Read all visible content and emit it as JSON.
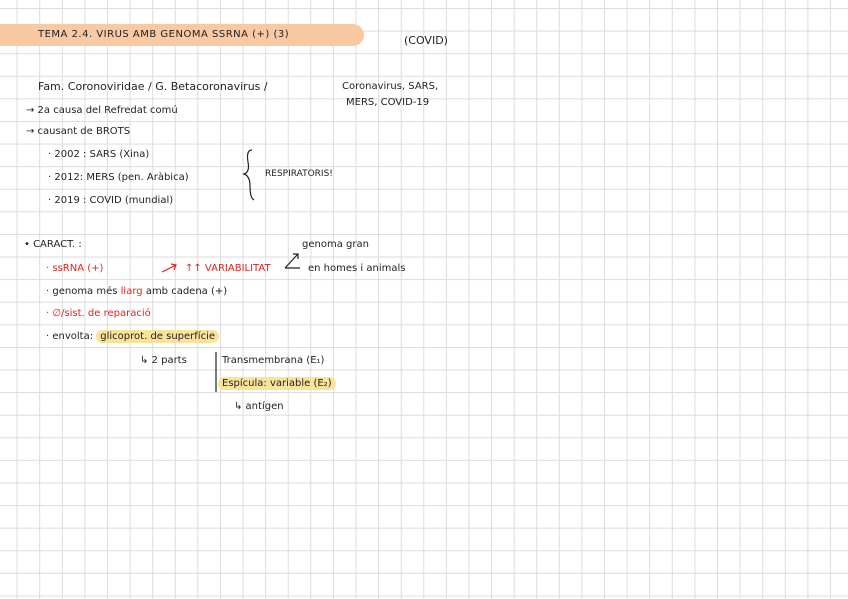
{
  "header": {
    "title": "TEMA 2.4. VIRUS AMB GENOMA SSRNA (+) (3)",
    "note": "(COVID)"
  },
  "family": {
    "text": "Fam. Coronoviridae / G. Betacoronavirus /",
    "examples": [
      "Coronavirus, SARS,",
      "MERS, COVID-19"
    ]
  },
  "points": [
    "→ 2a causa del Refredat comú",
    "→ causant de BROTS"
  ],
  "outbreaks": {
    "items": [
      "· 2002 : SARS (Xina)",
      "· 2012: MERS (pen. Aràbica)",
      "· 2019 : COVID (mundial)"
    ],
    "group_label": "RESPIRATORIS!"
  },
  "characteristics": {
    "heading": "• CARACT. :",
    "rna": "· ssRNA (+)",
    "variability": "↑↑ VARIABILITAT",
    "variability_notes": [
      "genoma gran",
      "en homes i animals"
    ],
    "genome": [
      "· genoma més",
      "llarg",
      "amb cadena (+)"
    ],
    "repair": "· ∅/sist. de reparació",
    "envelope": {
      "label": "· envolta:",
      "highlight": "glicoprot. de superfície",
      "parts": "↳ 2 parts",
      "part_list": [
        "Transmembrana (E₁)",
        "Espícula: variable (E₂)"
      ],
      "antigen": "↳ antígen"
    }
  }
}
